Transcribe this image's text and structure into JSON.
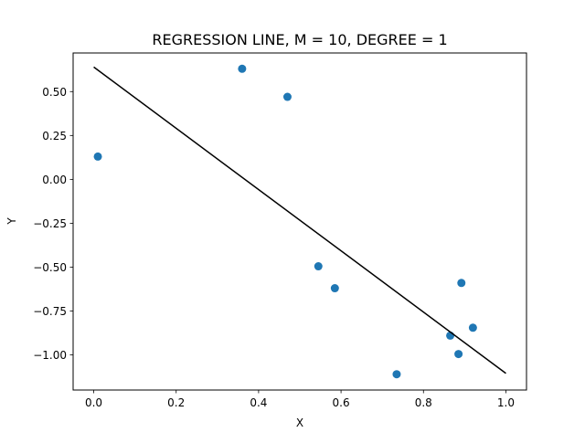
{
  "chart_data": {
    "type": "scatter",
    "title": "REGRESSION LINE, M  = 10, DEGREE = 1",
    "xlabel": "X",
    "ylabel": "Y",
    "xlim": [
      -0.05,
      1.05
    ],
    "ylim": [
      -1.2,
      0.72
    ],
    "grid": false,
    "x_ticks": [
      0.0,
      0.2,
      0.4,
      0.6,
      0.8,
      1.0
    ],
    "x_tick_labels": [
      "0.0",
      "0.2",
      "0.4",
      "0.6",
      "0.8",
      "1.0"
    ],
    "y_ticks": [
      0.5,
      0.25,
      0.0,
      -0.25,
      -0.5,
      -0.75,
      -1.0
    ],
    "y_tick_labels": [
      "0.50",
      "0.25",
      "0.00",
      "−0.25",
      "−0.50",
      "−0.75",
      "−1.00"
    ],
    "series": [
      {
        "type": "scatter",
        "color": "#1f77b4",
        "points": [
          {
            "x": 0.01,
            "y": 0.13
          },
          {
            "x": 0.36,
            "y": 0.63
          },
          {
            "x": 0.47,
            "y": 0.47
          },
          {
            "x": 0.545,
            "y": -0.495
          },
          {
            "x": 0.585,
            "y": -0.62
          },
          {
            "x": 0.735,
            "y": -1.11
          },
          {
            "x": 0.865,
            "y": -0.89
          },
          {
            "x": 0.885,
            "y": -0.995
          },
          {
            "x": 0.892,
            "y": -0.59
          },
          {
            "x": 0.92,
            "y": -0.845
          }
        ]
      },
      {
        "type": "line",
        "color": "#000000",
        "points": [
          {
            "x": 0.0,
            "y": 0.64
          },
          {
            "x": 1.0,
            "y": -1.105
          }
        ]
      }
    ]
  }
}
